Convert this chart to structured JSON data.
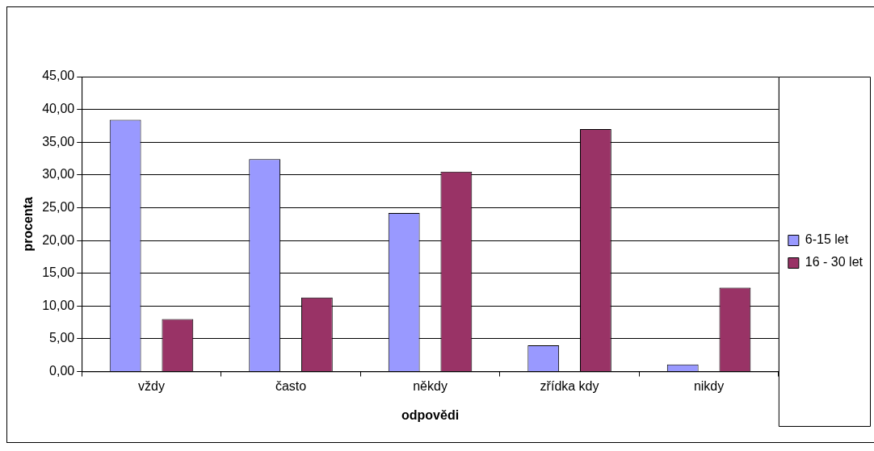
{
  "chart_data": {
    "type": "bar",
    "xlabel": "odpovědi",
    "ylabel": "procenta",
    "categories": [
      "vždy",
      "často",
      "někdy",
      "zřídka kdy",
      "nikdy"
    ],
    "series": [
      {
        "name": "6-15 let",
        "color": "#9999ff",
        "values": [
          38.4,
          32.4,
          24.2,
          4.0,
          1.1
        ]
      },
      {
        "name": "16 - 30 let",
        "color": "#993366",
        "values": [
          8.0,
          11.3,
          30.5,
          37.0,
          12.8
        ]
      }
    ],
    "ylim": [
      0,
      45
    ],
    "yticks": [
      {
        "value": 0,
        "label": "0,00"
      },
      {
        "value": 5,
        "label": "5,00"
      },
      {
        "value": 10,
        "label": "10,00"
      },
      {
        "value": 15,
        "label": "15,00"
      },
      {
        "value": 20,
        "label": "20,00"
      },
      {
        "value": 25,
        "label": "25,00"
      },
      {
        "value": 30,
        "label": "30,00"
      },
      {
        "value": 35,
        "label": "35,00"
      },
      {
        "value": 40,
        "label": "40,00"
      },
      {
        "value": 45,
        "label": "45,00"
      }
    ],
    "grid": "y",
    "legend": "right"
  }
}
